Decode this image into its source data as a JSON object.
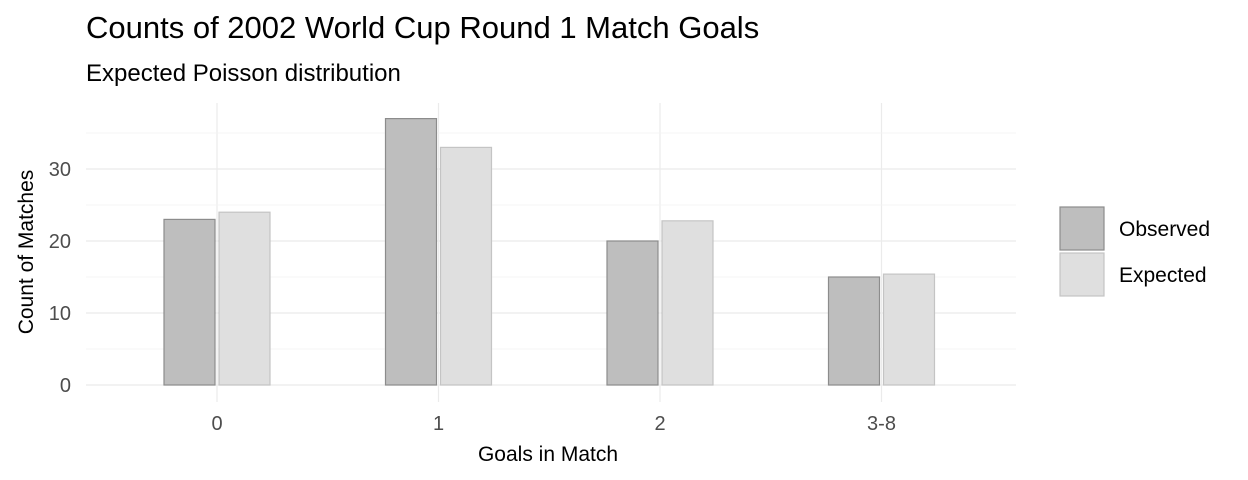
{
  "chart_data": {
    "type": "bar",
    "title": "Counts of 2002 World Cup Round 1 Match Goals",
    "subtitle": "Expected Poisson distribution",
    "xlabel": "Goals in Match",
    "ylabel": "Count of Matches",
    "categories": [
      "0",
      "1",
      "2",
      "3-8"
    ],
    "series": [
      {
        "name": "Observed",
        "values": [
          23,
          37,
          20,
          15
        ],
        "color": "#bebebe",
        "stroke": "#8c8c8c"
      },
      {
        "name": "Expected",
        "values": [
          24,
          33,
          22.8,
          15.4
        ],
        "color": "#dfdfdf",
        "stroke": "#c4c4c4"
      }
    ],
    "yticks": [
      0,
      10,
      20,
      30
    ],
    "ylim": [
      0,
      39
    ],
    "grid": true,
    "legend_position": "right"
  }
}
